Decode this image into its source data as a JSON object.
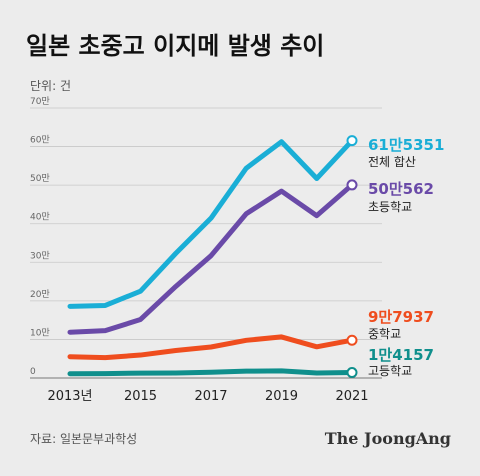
{
  "title": "일본 초중고 이지메 발생 추이",
  "unit_label": "단위: 건",
  "source": "자료: 일본문부과학성",
  "brand": "The JoongAng",
  "chart_data": {
    "type": "line",
    "x": [
      2013,
      2014,
      2015,
      2016,
      2017,
      2018,
      2019,
      2020,
      2021
    ],
    "x_tick_labels": [
      "2013년",
      "2015",
      "2017",
      "2019",
      "2021"
    ],
    "x_tick_values": [
      2013,
      2015,
      2017,
      2019,
      2021
    ],
    "y_ticks": [
      0,
      100000,
      200000,
      300000,
      400000,
      500000,
      600000,
      700000
    ],
    "y_tick_labels": [
      "0",
      "10만",
      "20만",
      "30만",
      "40만",
      "50만",
      "60만",
      "70만"
    ],
    "ylim": [
      0,
      700000
    ],
    "grid": true,
    "series": [
      {
        "name": "전체 합산",
        "value_label": "61만5351",
        "color": "#1aaed6",
        "values": [
          185800,
          188100,
          225100,
          323100,
          414400,
          543900,
          612500,
          517200,
          615351
        ]
      },
      {
        "name": "초등학교",
        "value_label": "50만562",
        "color": "#6a4aa8",
        "values": [
          118700,
          122700,
          151700,
          237300,
          317100,
          425800,
          484500,
          420900,
          500562
        ]
      },
      {
        "name": "중학교",
        "value_label": "9만7937",
        "color": "#ef4d1e",
        "values": [
          55200,
          52900,
          59500,
          71300,
          80400,
          97700,
          106500,
          80900,
          97937
        ]
      },
      {
        "name": "고등학교",
        "value_label": "1만4157",
        "color": "#0f8f8c",
        "values": [
          11000,
          11400,
          12700,
          12900,
          14800,
          17700,
          18400,
          13100,
          14157
        ]
      }
    ]
  }
}
